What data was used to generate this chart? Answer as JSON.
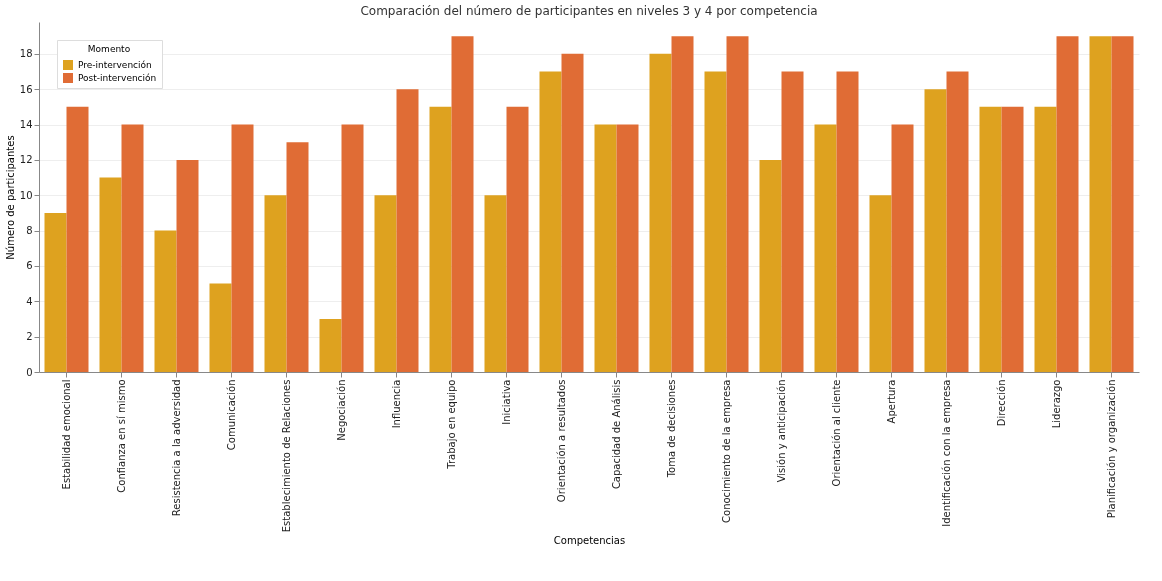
{
  "chart_data": {
    "type": "bar",
    "title": "Comparación del número de participantes en niveles 3 y 4 por competencia",
    "xlabel": "Competencias",
    "ylabel": "Número de participantes",
    "legend_title": "Momento",
    "categories": [
      "Estabilidad emocional",
      "Confianza en sí mismo",
      "Resistencia a la adversidad",
      "Comunicación",
      "Establecimiento de Relaciones",
      "Negociación",
      "Influencia",
      "Trabajo en equipo",
      "Iniciativa",
      "Orientación a resultados",
      "Capacidad de Análisis",
      "Toma de decisiones",
      "Conocimiento de la empresa",
      "Visión y anticipación",
      "Orientación al cliente",
      "Apertura",
      "Identificación con la empresa",
      "Dirección",
      "Liderazgo",
      "Planificación y organización"
    ],
    "series": [
      {
        "name": "Pre-intervención",
        "color": "#dea21f",
        "values": [
          9,
          11,
          8,
          5,
          10,
          3,
          10,
          15,
          10,
          17,
          14,
          18,
          17,
          12,
          14,
          10,
          16,
          15,
          15,
          19
        ]
      },
      {
        "name": "Post-intervención",
        "color": "#e06c35",
        "values": [
          15,
          14,
          12,
          14,
          13,
          14,
          16,
          19,
          15,
          18,
          14,
          19,
          19,
          17,
          17,
          14,
          17,
          15,
          19,
          19
        ]
      }
    ],
    "ylim": [
      0,
      19.8
    ],
    "yticks": [
      0,
      2,
      4,
      6,
      8,
      10,
      12,
      14,
      16,
      18
    ],
    "grid": "y",
    "legend": "top left"
  }
}
